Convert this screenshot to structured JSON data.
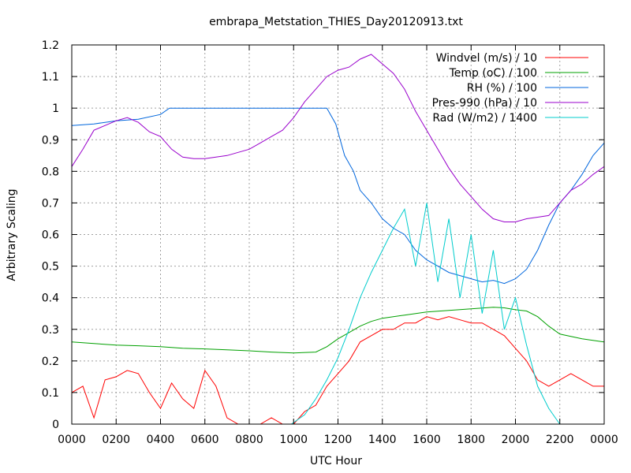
{
  "chart_data": {
    "type": "line",
    "title": "embrapa_Metstation_THIES_Day20120913.txt",
    "xlabel": "UTC Hour",
    "ylabel": "Arbitrary Scaling",
    "xlim": [
      0,
      24
    ],
    "ylim": [
      0,
      1.2
    ],
    "xticks": [
      0,
      2,
      4,
      6,
      8,
      10,
      12,
      14,
      16,
      18,
      20,
      22,
      24
    ],
    "xtick_labels": [
      "0000",
      "0200",
      "0400",
      "0600",
      "0800",
      "1000",
      "1200",
      "1400",
      "1600",
      "1800",
      "2000",
      "2200",
      "0000"
    ],
    "yticks": [
      0,
      0.1,
      0.2,
      0.3,
      0.4,
      0.5,
      0.6,
      0.7,
      0.8,
      0.9,
      1,
      1.1,
      1.2
    ],
    "ytick_labels": [
      "0",
      "0.1",
      "0.2",
      "0.3",
      "0.4",
      "0.5",
      "0.6",
      "0.7",
      "0.8",
      "0.9",
      "1",
      "1.1",
      "1.2"
    ],
    "grid": true,
    "legend_position": "top-right",
    "series": [
      {
        "name": "Windvel (m/s) / 10",
        "color": "#ff0000",
        "x": [
          0,
          0.5,
          1,
          1.5,
          2,
          2.5,
          3,
          3.5,
          4,
          4.5,
          5,
          5.5,
          6,
          6.5,
          7,
          7.5,
          8,
          8.5,
          9,
          9.5,
          10,
          10.5,
          11,
          11.5,
          12,
          12.5,
          13,
          13.5,
          14,
          14.5,
          15,
          15.5,
          16,
          16.5,
          17,
          17.5,
          18,
          18.5,
          19,
          19.5,
          20,
          20.5,
          21,
          21.5,
          22,
          22.5,
          23,
          23.5,
          24
        ],
        "values": [
          0.1,
          0.12,
          0.02,
          0.14,
          0.15,
          0.17,
          0.16,
          0.1,
          0.05,
          0.13,
          0.08,
          0.05,
          0.17,
          0.12,
          0.02,
          0.0,
          0.0,
          0.0,
          0.02,
          0.0,
          0.0,
          0.04,
          0.06,
          0.12,
          0.16,
          0.2,
          0.26,
          0.28,
          0.3,
          0.3,
          0.32,
          0.32,
          0.34,
          0.33,
          0.34,
          0.33,
          0.32,
          0.32,
          0.3,
          0.28,
          0.24,
          0.2,
          0.14,
          0.12,
          0.14,
          0.16,
          0.14,
          0.12,
          0.12
        ]
      },
      {
        "name": "Temp (oC) / 100",
        "color": "#00a000",
        "x": [
          0,
          1,
          2,
          3,
          4,
          5,
          6,
          7,
          8,
          9,
          10,
          11,
          11.5,
          12,
          12.5,
          13,
          13.5,
          14,
          15,
          16,
          17,
          18,
          19,
          19.5,
          20,
          20.5,
          21,
          21.5,
          22,
          23,
          24
        ],
        "values": [
          0.26,
          0.255,
          0.25,
          0.248,
          0.245,
          0.24,
          0.238,
          0.235,
          0.232,
          0.228,
          0.225,
          0.228,
          0.245,
          0.27,
          0.29,
          0.31,
          0.325,
          0.335,
          0.345,
          0.355,
          0.36,
          0.365,
          0.37,
          0.368,
          0.362,
          0.358,
          0.34,
          0.31,
          0.285,
          0.27,
          0.26
        ]
      },
      {
        "name": "RH (%) / 100",
        "color": "#0066dd",
        "x": [
          0,
          1,
          2,
          3,
          4,
          4.4,
          5,
          6,
          7,
          8,
          9,
          10,
          11,
          11.5,
          11.9,
          12.3,
          12.7,
          13,
          13.5,
          14,
          14.5,
          15,
          15.5,
          16,
          16.5,
          17,
          17.5,
          18,
          18.5,
          19,
          19.5,
          20,
          20.5,
          21,
          21.5,
          22,
          22.5,
          23,
          23.5,
          24
        ],
        "values": [
          0.945,
          0.95,
          0.96,
          0.965,
          0.98,
          1.0,
          1.0,
          1.0,
          1.0,
          1.0,
          1.0,
          1.0,
          1.0,
          1.0,
          0.95,
          0.85,
          0.8,
          0.74,
          0.7,
          0.65,
          0.62,
          0.6,
          0.55,
          0.52,
          0.5,
          0.48,
          0.47,
          0.46,
          0.45,
          0.455,
          0.445,
          0.46,
          0.49,
          0.55,
          0.63,
          0.7,
          0.74,
          0.79,
          0.85,
          0.89
        ]
      },
      {
        "name": "Pres-990 (hPa) / 10",
        "color": "#9900cc",
        "x": [
          0,
          0.5,
          1,
          1.5,
          2,
          2.5,
          3,
          3.5,
          4,
          4.5,
          5,
          5.5,
          6,
          6.5,
          7,
          7.5,
          8,
          8.5,
          9,
          9.5,
          10,
          10.5,
          11,
          11.5,
          12,
          12.5,
          13,
          13.5,
          14,
          14.5,
          15,
          15.5,
          16,
          16.5,
          17,
          17.5,
          18,
          18.5,
          19,
          19.5,
          20,
          20.5,
          21,
          21.5,
          22,
          22.5,
          23,
          23.5,
          24
        ],
        "values": [
          0.815,
          0.87,
          0.93,
          0.945,
          0.96,
          0.97,
          0.955,
          0.925,
          0.91,
          0.87,
          0.845,
          0.84,
          0.84,
          0.845,
          0.85,
          0.86,
          0.87,
          0.89,
          0.91,
          0.93,
          0.97,
          1.02,
          1.06,
          1.1,
          1.12,
          1.13,
          1.155,
          1.17,
          1.14,
          1.11,
          1.06,
          0.99,
          0.93,
          0.87,
          0.81,
          0.76,
          0.72,
          0.68,
          0.65,
          0.64,
          0.64,
          0.65,
          0.655,
          0.66,
          0.7,
          0.74,
          0.76,
          0.79,
          0.815
        ]
      },
      {
        "name": "Rad (W/m2) / 1400",
        "color": "#00cccc",
        "x": [
          0,
          9.9,
          10,
          10.5,
          11,
          11.5,
          12,
          12.5,
          13,
          13.5,
          14,
          14.5,
          15,
          15.5,
          16,
          16.5,
          17,
          17.5,
          18,
          18.5,
          19,
          19.5,
          20,
          20.5,
          21,
          21.5,
          21.9,
          22,
          24
        ],
        "values": [
          0,
          0,
          0.005,
          0.03,
          0.08,
          0.14,
          0.21,
          0.3,
          0.4,
          0.48,
          0.55,
          0.62,
          0.68,
          0.5,
          0.7,
          0.45,
          0.65,
          0.4,
          0.6,
          0.35,
          0.55,
          0.3,
          0.4,
          0.25,
          0.12,
          0.05,
          0.01,
          0,
          0
        ]
      }
    ]
  }
}
